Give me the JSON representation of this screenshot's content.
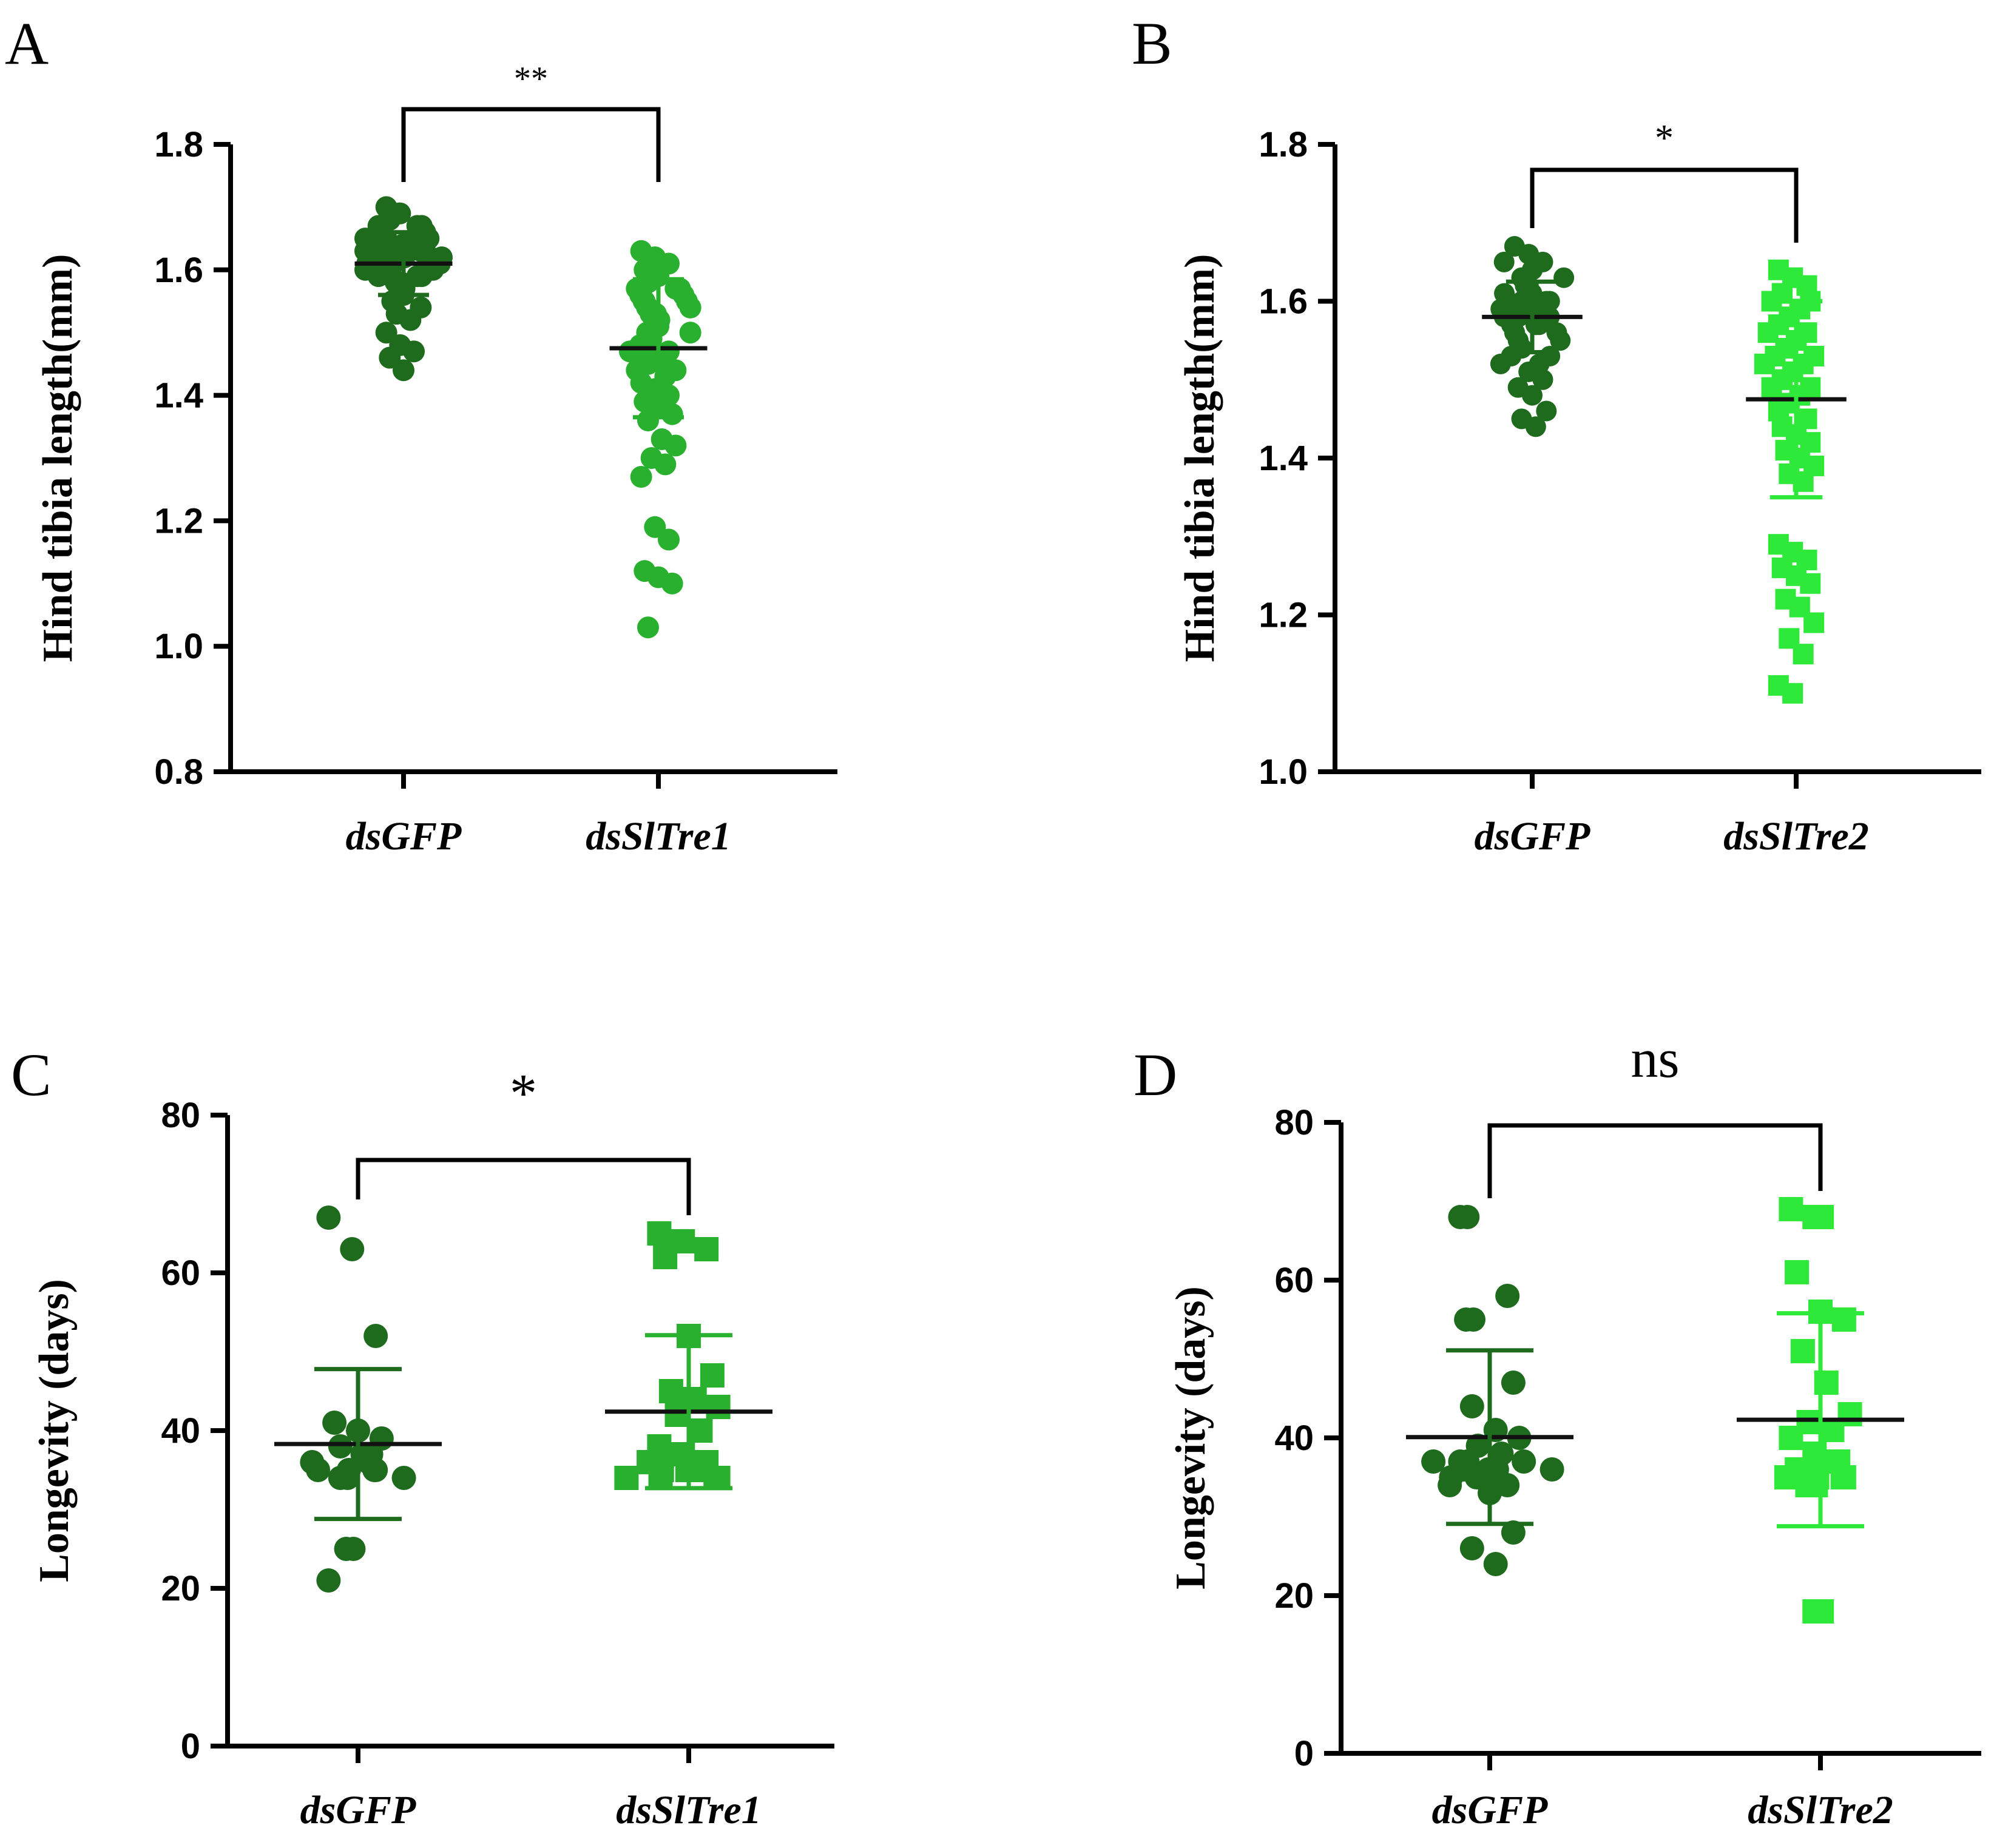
{
  "colors": {
    "control": "#1e6b1e",
    "tre1": "#29b02e",
    "tre2": "#2ee83a",
    "axis": "#000000",
    "text": "#000000"
  },
  "chart_data": [
    {
      "panel": "A",
      "type": "scatter",
      "ylabel": "Hind tibia length(mm)",
      "ylim": [
        0.8,
        1.8
      ],
      "yticks": [
        "0.8",
        "1.0",
        "1.2",
        "1.4",
        "1.6",
        "1.8"
      ],
      "categories": [
        "dsGFP",
        "dsSlTre1"
      ],
      "significance": "**",
      "series": [
        {
          "name": "dsGFP",
          "color": "control",
          "marker": "circle",
          "mean": 1.61,
          "sd": 0.05,
          "values": [
            1.7,
            1.69,
            1.69,
            1.68,
            1.68,
            1.67,
            1.67,
            1.67,
            1.66,
            1.66,
            1.66,
            1.65,
            1.65,
            1.65,
            1.65,
            1.64,
            1.64,
            1.64,
            1.64,
            1.63,
            1.63,
            1.63,
            1.63,
            1.62,
            1.62,
            1.62,
            1.62,
            1.62,
            1.61,
            1.61,
            1.61,
            1.61,
            1.61,
            1.6,
            1.6,
            1.6,
            1.6,
            1.6,
            1.59,
            1.59,
            1.59,
            1.59,
            1.58,
            1.58,
            1.58,
            1.57,
            1.57,
            1.57,
            1.56,
            1.56,
            1.55,
            1.55,
            1.54,
            1.53,
            1.52,
            1.5,
            1.48,
            1.47,
            1.46,
            1.44
          ]
        },
        {
          "name": "dsSlTre1",
          "color": "tre1",
          "marker": "circle",
          "mean": 1.475,
          "sd": 0.11,
          "values": [
            1.63,
            1.62,
            1.61,
            1.6,
            1.59,
            1.59,
            1.58,
            1.58,
            1.57,
            1.57,
            1.57,
            1.56,
            1.56,
            1.56,
            1.55,
            1.55,
            1.55,
            1.54,
            1.54,
            1.54,
            1.53,
            1.53,
            1.53,
            1.52,
            1.52,
            1.52,
            1.51,
            1.51,
            1.5,
            1.5,
            1.5,
            1.49,
            1.49,
            1.48,
            1.48,
            1.47,
            1.47,
            1.46,
            1.46,
            1.45,
            1.45,
            1.44,
            1.44,
            1.43,
            1.42,
            1.41,
            1.4,
            1.39,
            1.38,
            1.37,
            1.36,
            1.33,
            1.32,
            1.3,
            1.29,
            1.27,
            1.19,
            1.17,
            1.12,
            1.11,
            1.1,
            1.03
          ]
        }
      ]
    },
    {
      "panel": "B",
      "type": "scatter",
      "ylabel": "Hind tibia length(mm)",
      "ylim": [
        1.0,
        1.8
      ],
      "yticks": [
        "1.0",
        "1.2",
        "1.4",
        "1.6",
        "1.8"
      ],
      "categories": [
        "dsGFP",
        "dsSlTre2"
      ],
      "significance": "*",
      "series": [
        {
          "name": "dsGFP",
          "color": "control",
          "marker": "circle",
          "mean": 1.58,
          "sd": 0.045,
          "values": [
            1.67,
            1.66,
            1.65,
            1.65,
            1.64,
            1.64,
            1.63,
            1.63,
            1.63,
            1.62,
            1.62,
            1.62,
            1.61,
            1.61,
            1.61,
            1.61,
            1.6,
            1.6,
            1.6,
            1.6,
            1.59,
            1.59,
            1.59,
            1.59,
            1.58,
            1.58,
            1.58,
            1.58,
            1.58,
            1.57,
            1.57,
            1.57,
            1.57,
            1.56,
            1.56,
            1.56,
            1.55,
            1.55,
            1.55,
            1.54,
            1.54,
            1.53,
            1.53,
            1.52,
            1.52,
            1.51,
            1.5,
            1.49,
            1.48,
            1.46,
            1.45,
            1.44
          ]
        },
        {
          "name": "dsSlTre2",
          "color": "tre2",
          "marker": "square",
          "mean": 1.475,
          "sd": 0.125,
          "values": [
            1.64,
            1.63,
            1.62,
            1.61,
            1.61,
            1.6,
            1.6,
            1.59,
            1.59,
            1.58,
            1.58,
            1.57,
            1.57,
            1.56,
            1.56,
            1.55,
            1.55,
            1.54,
            1.54,
            1.53,
            1.53,
            1.52,
            1.52,
            1.51,
            1.51,
            1.5,
            1.5,
            1.49,
            1.49,
            1.48,
            1.48,
            1.47,
            1.47,
            1.46,
            1.46,
            1.45,
            1.44,
            1.43,
            1.42,
            1.41,
            1.4,
            1.39,
            1.38,
            1.37,
            1.29,
            1.28,
            1.27,
            1.26,
            1.25,
            1.24,
            1.22,
            1.21,
            1.19,
            1.17,
            1.15,
            1.11,
            1.1
          ]
        }
      ]
    },
    {
      "panel": "C",
      "type": "scatter",
      "ylabel": "Longevity (days)",
      "ylim": [
        0,
        80
      ],
      "yticks": [
        "0",
        "20",
        "40",
        "60",
        "80"
      ],
      "categories": [
        "dsGFP",
        "dsSlTre1"
      ],
      "significance": "*",
      "series": [
        {
          "name": "dsGFP",
          "color": "control",
          "marker": "circle",
          "mean": 38.3,
          "sd": 9.5,
          "values": [
            67,
            63,
            52,
            41,
            40,
            39,
            38,
            37,
            37,
            37,
            36,
            36,
            36,
            35,
            35,
            35,
            35,
            34,
            34,
            34,
            25,
            25,
            21
          ]
        },
        {
          "name": "dsSlTre1",
          "color": "tre1",
          "marker": "square",
          "mean": 42.4,
          "sd": 9.7,
          "values": [
            65,
            64,
            63,
            62,
            52,
            47,
            45,
            44,
            43,
            42,
            40,
            38,
            37,
            36,
            36,
            35,
            35,
            35,
            35,
            34,
            34,
            34,
            34,
            34
          ]
        }
      ]
    },
    {
      "panel": "D",
      "type": "scatter",
      "ylabel": "Longevity (days)",
      "ylim": [
        0,
        80
      ],
      "yticks": [
        "0",
        "20",
        "40",
        "60",
        "80"
      ],
      "categories": [
        "dsGFP",
        "dsSlTre2"
      ],
      "significance": "ns",
      "series": [
        {
          "name": "dsGFP",
          "color": "control",
          "marker": "circle",
          "mean": 40.1,
          "sd": 11,
          "values": [
            68,
            68,
            58,
            55,
            55,
            47,
            44,
            41,
            40,
            39,
            38,
            37,
            37,
            37,
            37,
            36,
            36,
            36,
            36,
            36,
            35,
            35,
            35,
            35,
            34,
            34,
            33,
            28,
            26,
            24
          ]
        },
        {
          "name": "dsSlTre2",
          "color": "tre2",
          "marker": "square",
          "mean": 42.3,
          "sd": 13.5,
          "values": [
            69,
            68,
            68,
            61,
            56,
            55,
            51,
            47,
            43,
            42,
            41,
            40,
            38,
            37,
            36,
            36,
            35,
            35,
            35,
            35,
            34,
            34,
            34,
            18,
            18
          ]
        }
      ]
    }
  ]
}
